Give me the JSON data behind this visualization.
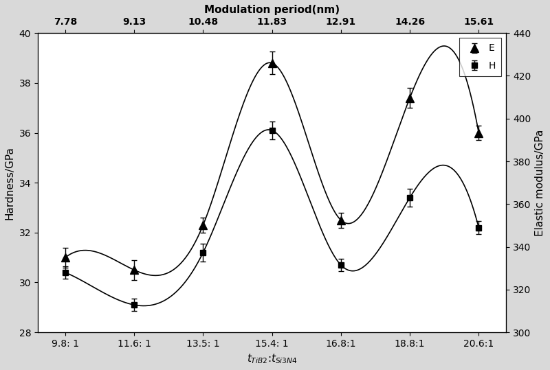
{
  "x_positions": [
    1,
    2,
    3,
    4,
    5,
    6,
    7
  ],
  "x_labels_bottom": [
    "9.8: 1",
    "11.6: 1",
    "13.5: 1",
    "15.4: 1",
    "16.8:1",
    "18.8:1",
    "20.6:1"
  ],
  "x_labels_top": [
    "7.78",
    "9.13",
    "10.48",
    "11.83",
    "12.91",
    "14.26",
    "15.61"
  ],
  "xlabel_bottom": "$t_{TiB2}$:$t_{Si3N4}$",
  "xlabel_top": "Modulation period(nm)",
  "ylabel_left": "Hardness/GPa",
  "ylabel_right": "Elastic modulus/GPa",
  "E_values": [
    31.0,
    30.5,
    32.3,
    38.8,
    32.5,
    37.4,
    36.0
  ],
  "H_values": [
    30.4,
    29.1,
    31.2,
    36.1,
    30.7,
    33.4,
    32.2
  ],
  "E_errors": [
    0.4,
    0.4,
    0.3,
    0.45,
    0.3,
    0.4,
    0.3
  ],
  "H_errors": [
    0.25,
    0.25,
    0.35,
    0.35,
    0.25,
    0.35,
    0.25
  ],
  "ylim_left": [
    28,
    40
  ],
  "ylim_right": [
    300,
    440
  ],
  "yticks_left": [
    28,
    30,
    32,
    34,
    36,
    38,
    40
  ],
  "yticks_right": [
    300,
    320,
    340,
    360,
    380,
    400,
    420,
    440
  ],
  "legend_labels": [
    "E",
    "H"
  ],
  "line_color": "black",
  "marker_color": "black",
  "bg_color": "#ffffff",
  "fig_bg_color": "#d9d9d9",
  "axis_fontsize": 11,
  "tick_fontsize": 10,
  "legend_fontsize": 10
}
